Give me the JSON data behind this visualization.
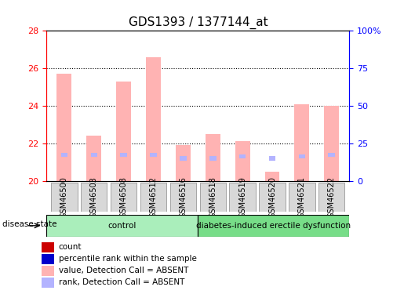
{
  "title": "GDS1393 / 1377144_at",
  "samples": [
    "GSM46500",
    "GSM46503",
    "GSM46508",
    "GSM46512",
    "GSM46516",
    "GSM46518",
    "GSM46519",
    "GSM46520",
    "GSM46521",
    "GSM46522"
  ],
  "bar_values": [
    25.7,
    22.4,
    25.3,
    26.6,
    21.9,
    22.5,
    22.1,
    20.5,
    24.1,
    24.0
  ],
  "rank_values": [
    21.4,
    21.4,
    21.4,
    21.4,
    21.2,
    21.2,
    21.3,
    21.2,
    21.3,
    21.4
  ],
  "ylim_left": [
    20,
    28
  ],
  "ylim_right": [
    0,
    100
  ],
  "yticks_left": [
    20,
    22,
    24,
    26,
    28
  ],
  "yticks_right": [
    0,
    25,
    50,
    75,
    100
  ],
  "ytick_labels_right": [
    "0",
    "25",
    "50",
    "75",
    "100%"
  ],
  "bar_color": "#ffb3b3",
  "rank_color": "#b3b3ff",
  "bar_base": 20,
  "groups": [
    {
      "label": "control",
      "start": 0,
      "end": 4,
      "color": "#aaeebb"
    },
    {
      "label": "diabetes-induced erectile dysfunction",
      "start": 5,
      "end": 9,
      "color": "#77dd88"
    }
  ],
  "group_label": "disease state",
  "legend_items": [
    {
      "color": "#cc0000",
      "label": "count"
    },
    {
      "color": "#0000cc",
      "label": "percentile rank within the sample"
    },
    {
      "color": "#ffb3b3",
      "label": "value, Detection Call = ABSENT"
    },
    {
      "color": "#b3b3ff",
      "label": "rank, Detection Call = ABSENT"
    }
  ],
  "dotted_yticks": [
    22,
    24,
    26
  ],
  "bar_width": 0.5,
  "title_fontsize": 11,
  "tick_fontsize": 8,
  "label_fontsize": 8
}
